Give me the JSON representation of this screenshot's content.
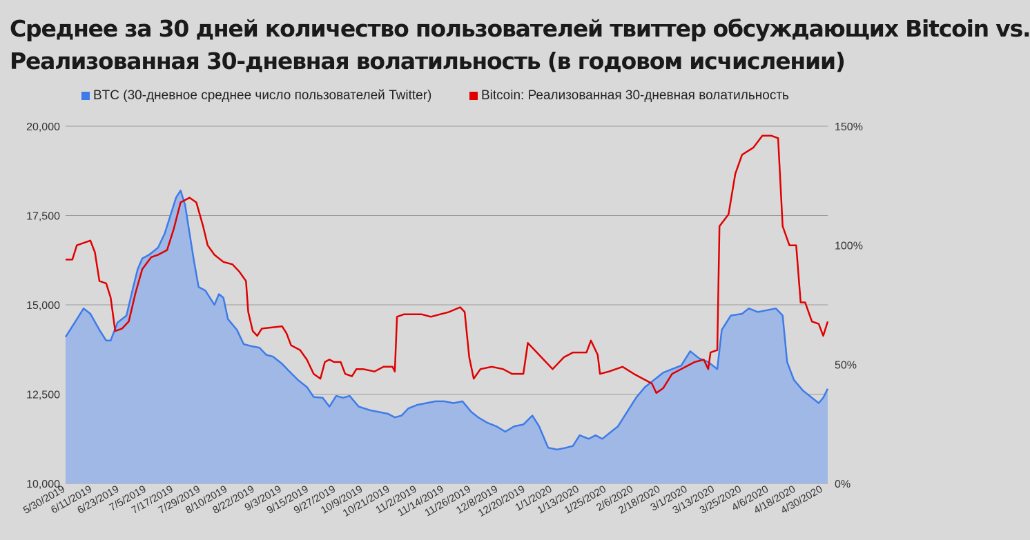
{
  "chart_data": {
    "type": "area",
    "title_lines": [
      "Среднее за 30 дней количество пользователей твиттер обсуждающих Bitcoin vs.",
      "Реализованная 30-дневная волатильность (в годовом исчислении)"
    ],
    "legend": [
      {
        "name": "BTC (30-дневное среднее число пользователей Twitter)",
        "color": "#3d7be8"
      },
      {
        "name": "Bitcoin: Реализованная 30-дневная волатильность",
        "color": "#e00000"
      }
    ],
    "x_tick_labels": [
      "5/30/2019",
      "6/11/2019",
      "6/23/2019",
      "7/5/2019",
      "7/17/2019",
      "7/29/2019",
      "8/10/2019",
      "8/22/2019",
      "9/3/2019",
      "9/15/2019",
      "9/27/2019",
      "10/9/2019",
      "10/21/2019",
      "11/2/2019",
      "11/14/2019",
      "11/26/2019",
      "12/8/2019",
      "12/20/2019",
      "1/1/2020",
      "1/13/2020",
      "1/25/2020",
      "2/6/2020",
      "2/18/2020",
      "3/1/2020",
      "3/13/2020",
      "3/25/2020",
      "4/6/2020",
      "4/18/2020",
      "4/30/2020"
    ],
    "x_range": [
      "5/30/2019",
      "5/2/2020"
    ],
    "y_left": {
      "min": 10000,
      "max": 20000,
      "ticks": [
        "10,000",
        "12,500",
        "15,000",
        "17,500",
        "20,000"
      ],
      "tick_values": [
        10000,
        12500,
        15000,
        17500,
        20000
      ]
    },
    "y_right": {
      "min": 0,
      "max": 150,
      "ticks": [
        "0%",
        "50%",
        "100%",
        "150%"
      ],
      "tick_values": [
        0,
        50,
        100,
        150
      ]
    },
    "grid": true,
    "legend_position": "top",
    "colors": {
      "area_fill": "#9fb8e6",
      "area_line": "#3d7be8",
      "vol_line": "#e00000",
      "grid": "#9a9a9a",
      "background": "#d9d9d9"
    },
    "series": [
      {
        "name": "BTC (30-дневное среднее число пользователей Twitter)",
        "axis": "left",
        "points": [
          [
            "5/30/2019",
            14100
          ],
          [
            "6/3/2019",
            14500
          ],
          [
            "6/7/2019",
            14900
          ],
          [
            "6/10/2019",
            14750
          ],
          [
            "6/14/2019",
            14300
          ],
          [
            "6/17/2019",
            14000
          ],
          [
            "6/19/2019",
            14000
          ],
          [
            "6/22/2019",
            14500
          ],
          [
            "6/26/2019",
            14700
          ],
          [
            "6/29/2019",
            15500
          ],
          [
            "7/1/2019",
            16000
          ],
          [
            "7/3/2019",
            16300
          ],
          [
            "7/6/2019",
            16400
          ],
          [
            "7/10/2019",
            16600
          ],
          [
            "7/13/2019",
            17000
          ],
          [
            "7/16/2019",
            17600
          ],
          [
            "7/18/2019",
            18000
          ],
          [
            "7/20/2019",
            18200
          ],
          [
            "7/22/2019",
            17800
          ],
          [
            "7/24/2019",
            17000
          ],
          [
            "7/26/2019",
            16200
          ],
          [
            "7/28/2019",
            15500
          ],
          [
            "7/31/2019",
            15400
          ],
          [
            "8/4/2019",
            15000
          ],
          [
            "8/6/2019",
            15300
          ],
          [
            "8/8/2019",
            15200
          ],
          [
            "8/10/2019",
            14600
          ],
          [
            "8/14/2019",
            14300
          ],
          [
            "8/17/2019",
            13900
          ],
          [
            "8/20/2019",
            13850
          ],
          [
            "8/24/2019",
            13800
          ],
          [
            "8/27/2019",
            13600
          ],
          [
            "8/30/2019",
            13550
          ],
          [
            "9/3/2019",
            13350
          ],
          [
            "9/6/2019",
            13150
          ],
          [
            "9/10/2019",
            12900
          ],
          [
            "9/14/2019",
            12700
          ],
          [
            "9/17/2019",
            12420
          ],
          [
            "9/21/2019",
            12400
          ],
          [
            "9/24/2019",
            12150
          ],
          [
            "9/27/2019",
            12450
          ],
          [
            "9/30/2019",
            12400
          ],
          [
            "10/3/2019",
            12450
          ],
          [
            "10/7/2019",
            12150
          ],
          [
            "10/12/2019",
            12050
          ],
          [
            "10/16/2019",
            12000
          ],
          [
            "10/20/2019",
            11950
          ],
          [
            "10/23/2019",
            11850
          ],
          [
            "10/26/2019",
            11900
          ],
          [
            "10/29/2019",
            12100
          ],
          [
            "11/2/2019",
            12200
          ],
          [
            "11/6/2019",
            12250
          ],
          [
            "11/10/2019",
            12300
          ],
          [
            "11/14/2019",
            12300
          ],
          [
            "11/18/2019",
            12250
          ],
          [
            "11/22/2019",
            12300
          ],
          [
            "11/26/2019",
            12000
          ],
          [
            "11/29/2019",
            11850
          ],
          [
            "12/3/2019",
            11700
          ],
          [
            "12/7/2019",
            11600
          ],
          [
            "12/11/2019",
            11450
          ],
          [
            "12/15/2019",
            11600
          ],
          [
            "12/19/2019",
            11650
          ],
          [
            "12/23/2019",
            11900
          ],
          [
            "12/26/2019",
            11600
          ],
          [
            "12/30/2019",
            11000
          ],
          [
            "1/3/2020",
            10950
          ],
          [
            "1/7/2020",
            11000
          ],
          [
            "1/10/2020",
            11050
          ],
          [
            "1/13/2020",
            11350
          ],
          [
            "1/17/2020",
            11250
          ],
          [
            "1/20/2020",
            11350
          ],
          [
            "1/23/2020",
            11250
          ],
          [
            "1/26/2020",
            11400
          ],
          [
            "1/30/2020",
            11600
          ],
          [
            "2/3/2020",
            12000
          ],
          [
            "2/7/2020",
            12400
          ],
          [
            "2/11/2020",
            12700
          ],
          [
            "2/15/2020",
            12900
          ],
          [
            "2/19/2020",
            13100
          ],
          [
            "2/23/2020",
            13200
          ],
          [
            "2/27/2020",
            13300
          ],
          [
            "3/2/2020",
            13700
          ],
          [
            "3/6/2020",
            13500
          ],
          [
            "3/10/2020",
            13400
          ],
          [
            "3/14/2020",
            13200
          ],
          [
            "3/16/2020",
            14300
          ],
          [
            "3/20/2020",
            14700
          ],
          [
            "3/25/2020",
            14750
          ],
          [
            "3/28/2020",
            14900
          ],
          [
            "4/1/2020",
            14800
          ],
          [
            "4/5/2020",
            14850
          ],
          [
            "4/9/2020",
            14900
          ],
          [
            "4/12/2020",
            14700
          ],
          [
            "4/14/2020",
            13400
          ],
          [
            "4/17/2020",
            12900
          ],
          [
            "4/21/2020",
            12600
          ],
          [
            "4/25/2020",
            12400
          ],
          [
            "4/28/2020",
            12250
          ],
          [
            "4/30/2020",
            12400
          ],
          [
            "5/2/2020",
            12650
          ]
        ]
      },
      {
        "name": "Bitcoin: Реализованная 30-дневная волатильность",
        "axis": "right",
        "points": [
          [
            "5/30/2019",
            94
          ],
          [
            "6/2/2019",
            94
          ],
          [
            "6/4/2019",
            100
          ],
          [
            "6/10/2019",
            102
          ],
          [
            "6/12/2019",
            97
          ],
          [
            "6/14/2019",
            85
          ],
          [
            "6/17/2019",
            84
          ],
          [
            "6/19/2019",
            78
          ],
          [
            "6/21/2019",
            64
          ],
          [
            "6/24/2019",
            65
          ],
          [
            "6/27/2019",
            68
          ],
          [
            "6/30/2019",
            80
          ],
          [
            "7/3/2019",
            90
          ],
          [
            "7/7/2019",
            95
          ],
          [
            "7/10/2019",
            96
          ],
          [
            "7/14/2019",
            98
          ],
          [
            "7/17/2019",
            107
          ],
          [
            "7/20/2019",
            118
          ],
          [
            "7/24/2019",
            120
          ],
          [
            "7/27/2019",
            118
          ],
          [
            "7/30/2019",
            108
          ],
          [
            "8/1/2019",
            100
          ],
          [
            "8/4/2019",
            96
          ],
          [
            "8/8/2019",
            93
          ],
          [
            "8/12/2019",
            92
          ],
          [
            "8/15/2019",
            89
          ],
          [
            "8/18/2019",
            85
          ],
          [
            "8/19/2019",
            72
          ],
          [
            "8/21/2019",
            64
          ],
          [
            "8/23/2019",
            62
          ],
          [
            "8/25/2019",
            65
          ],
          [
            "9/3/2019",
            66
          ],
          [
            "9/5/2019",
            63
          ],
          [
            "9/7/2019",
            58
          ],
          [
            "9/11/2019",
            56
          ],
          [
            "9/14/2019",
            52
          ],
          [
            "9/17/2019",
            46
          ],
          [
            "9/20/2019",
            44
          ],
          [
            "9/22/2019",
            51
          ],
          [
            "9/24/2019",
            52
          ],
          [
            "9/26/2019",
            51
          ],
          [
            "9/29/2019",
            51
          ],
          [
            "10/1/2019",
            46
          ],
          [
            "10/4/2019",
            45
          ],
          [
            "10/6/2019",
            48
          ],
          [
            "10/9/2019",
            48
          ],
          [
            "10/14/2019",
            47
          ],
          [
            "10/18/2019",
            49
          ],
          [
            "10/22/2019",
            49
          ],
          [
            "10/23/2019",
            47
          ],
          [
            "10/24/2019",
            70
          ],
          [
            "10/27/2019",
            71
          ],
          [
            "11/4/2019",
            71
          ],
          [
            "11/8/2019",
            70
          ],
          [
            "11/12/2019",
            71
          ],
          [
            "11/16/2019",
            72
          ],
          [
            "11/21/2019",
            74
          ],
          [
            "11/23/2019",
            72
          ],
          [
            "11/25/2019",
            53
          ],
          [
            "11/27/2019",
            44
          ],
          [
            "11/30/2019",
            48
          ],
          [
            "12/5/2019",
            49
          ],
          [
            "12/10/2019",
            48
          ],
          [
            "12/14/2019",
            46
          ],
          [
            "12/19/2019",
            46
          ],
          [
            "12/21/2019",
            59
          ],
          [
            "12/24/2019",
            56
          ],
          [
            "12/28/2019",
            52
          ],
          [
            "1/1/2020",
            48
          ],
          [
            "1/6/2020",
            53
          ],
          [
            "1/10/2020",
            55
          ],
          [
            "1/16/2020",
            55
          ],
          [
            "1/18/2020",
            60
          ],
          [
            "1/21/2020",
            54
          ],
          [
            "1/22/2020",
            46
          ],
          [
            "1/26/2020",
            47
          ],
          [
            "2/1/2020",
            49
          ],
          [
            "2/6/2020",
            46
          ],
          [
            "2/10/2020",
            44
          ],
          [
            "2/14/2020",
            42
          ],
          [
            "2/16/2020",
            38
          ],
          [
            "2/19/2020",
            40
          ],
          [
            "2/23/2020",
            46
          ],
          [
            "2/27/2020",
            48
          ],
          [
            "3/4/2020",
            51
          ],
          [
            "3/8/2020",
            52
          ],
          [
            "3/10/2020",
            48
          ],
          [
            "3/11/2020",
            55
          ],
          [
            "3/14/2020",
            56
          ],
          [
            "3/15/2020",
            108
          ],
          [
            "3/19/2020",
            113
          ],
          [
            "3/22/2020",
            130
          ],
          [
            "3/25/2020",
            138
          ],
          [
            "3/30/2020",
            141
          ],
          [
            "4/3/2020",
            146
          ],
          [
            "4/7/2020",
            146
          ],
          [
            "4/10/2020",
            145
          ],
          [
            "4/12/2020",
            108
          ],
          [
            "4/15/2020",
            100
          ],
          [
            "4/18/2020",
            100
          ],
          [
            "4/20/2020",
            76
          ],
          [
            "4/22/2020",
            76
          ],
          [
            "4/25/2020",
            68
          ],
          [
            "4/28/2020",
            67
          ],
          [
            "4/30/2020",
            62
          ],
          [
            "5/2/2020",
            68
          ]
        ]
      }
    ]
  }
}
